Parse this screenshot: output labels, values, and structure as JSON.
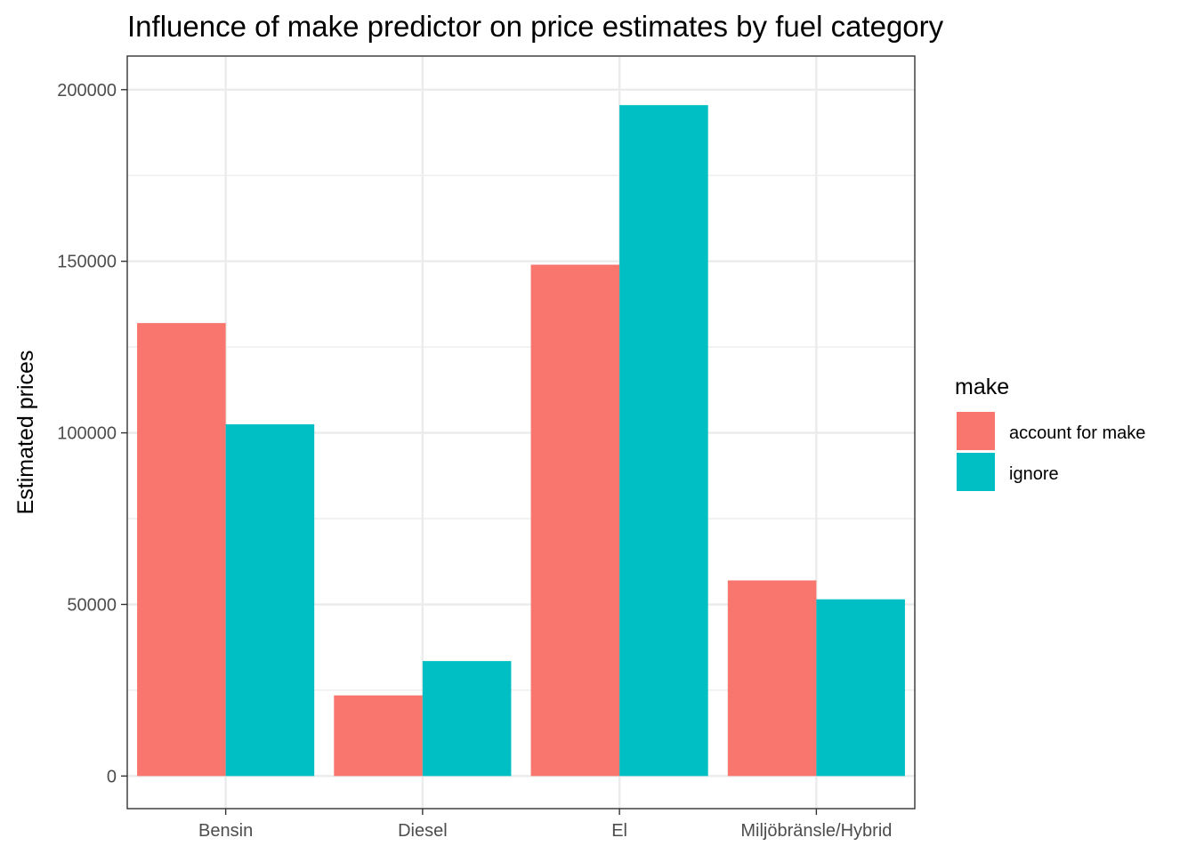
{
  "chart_data": {
    "type": "bar",
    "title": "Influence of make predictor on price estimates by fuel category",
    "xlabel": "",
    "ylabel": "Estimated prices",
    "categories": [
      "Bensin",
      "Diesel",
      "El",
      "Miljöbränsle/Hybrid"
    ],
    "series": [
      {
        "name": "account for make",
        "color": "#F8766D",
        "values": [
          132000,
          23500,
          149000,
          57000
        ]
      },
      {
        "name": "ignore",
        "color": "#00BFC4",
        "values": [
          102500,
          33500,
          195500,
          51500
        ]
      }
    ],
    "ylim": [
      -9500,
      209800
    ],
    "yticks": [
      0,
      50000,
      100000,
      150000,
      200000
    ],
    "ytick_labels": [
      "0",
      "50000",
      "100000",
      "150000",
      "200000"
    ],
    "grid": true,
    "legend": {
      "title": "make",
      "position": "right"
    }
  }
}
